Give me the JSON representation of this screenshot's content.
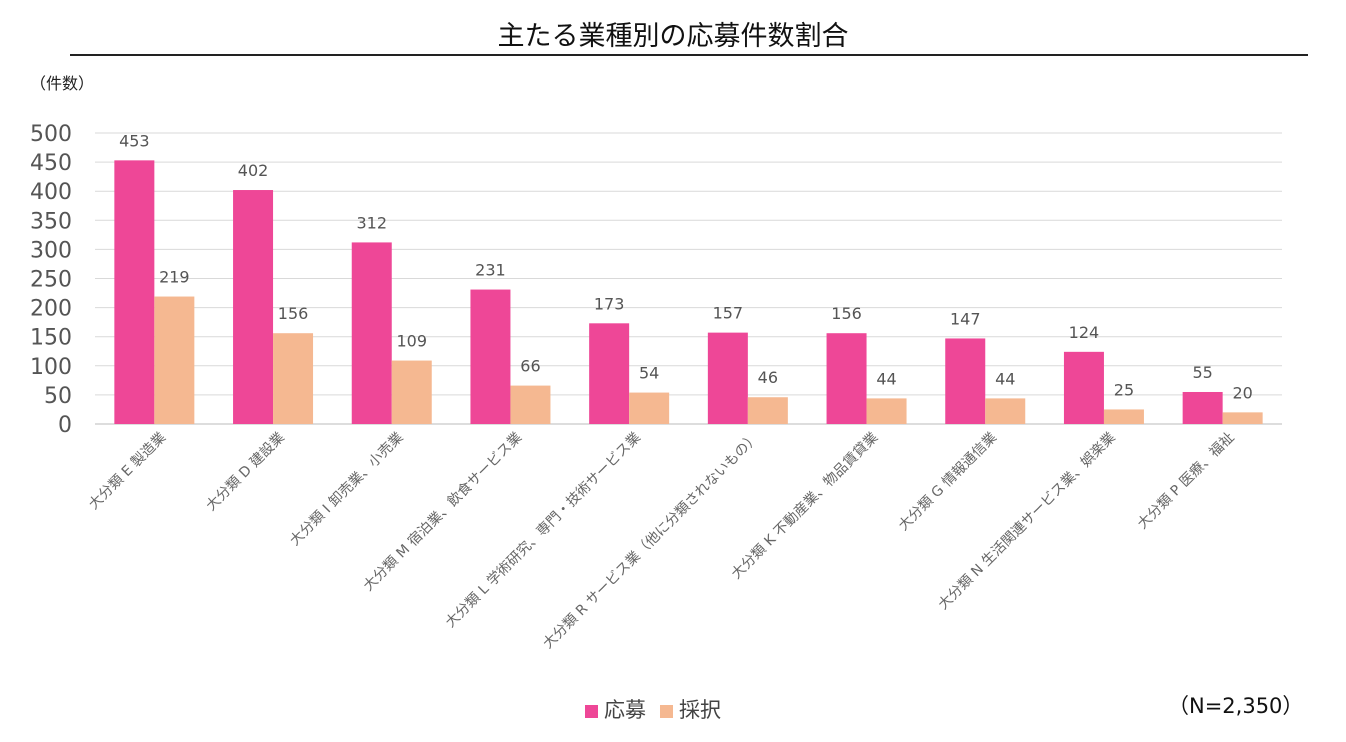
{
  "title": "主たる業種別の応募件数割合",
  "unit_label": "（件数）",
  "note": "（N=2,350）",
  "chart_data": {
    "type": "bar",
    "title": "主たる業種別の応募件数割合",
    "ylabel": "（件数）",
    "ylim": [
      0,
      500
    ],
    "yticks": [
      0,
      50,
      100,
      150,
      200,
      250,
      300,
      350,
      400,
      450,
      500
    ],
    "grid": true,
    "legend_position": "bottom",
    "categories": [
      "大分類 E 製造業",
      "大分類 D 建設業",
      "大分類 I 卸売業、小売業",
      "大分類 M 宿泊業、飲食サービス業",
      "大分類 L 学術研究、専門・技術サービス業",
      "大分類 R サービス業（他に分類されないもの）",
      "大分類 K 不動産業、物品賃貸業",
      "大分類 G 情報通信業",
      "大分類 N 生活関連サービス業、娯楽業",
      "大分類 P 医療、福祉"
    ],
    "series": [
      {
        "name": "応募",
        "color": "#EE4797",
        "values": [
          453,
          402,
          312,
          231,
          173,
          157,
          156,
          147,
          124,
          55
        ]
      },
      {
        "name": "採択",
        "color": "#F5B891",
        "values": [
          219,
          156,
          109,
          66,
          54,
          46,
          44,
          44,
          25,
          20
        ]
      }
    ]
  }
}
